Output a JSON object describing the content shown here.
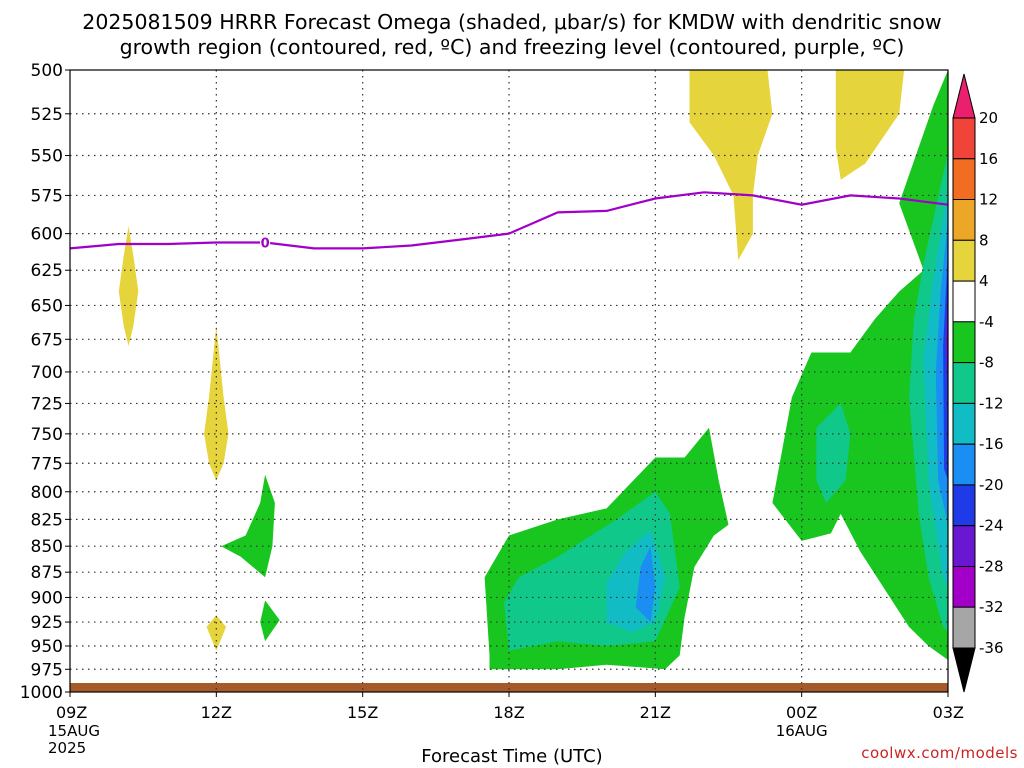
{
  "title_line1": "2025081509 HRRR Forecast Omega (shaded, μbar/s) for KMDW with dendritic snow",
  "title_line2": "growth region (contoured, red, ºC) and freezing level (contoured, purple, ºC)",
  "credit": "coolwx.com/models",
  "credit_color": "#cc2222",
  "chart_data": {
    "type": "heatmap",
    "title": "2025081509 HRRR Forecast Omega (shaded, μbar/s) for KMDW with dendritic snow growth region (contoured, red, ºC) and freezing level (contoured, purple, ºC)",
    "xlabel": "Forecast Time (UTC)",
    "ylabel": "",
    "x_range_hours": [
      0,
      18
    ],
    "y_range_hpa": [
      500,
      1000
    ],
    "y_scale": "log-pressure (inverted)",
    "grid": true,
    "x_ticks": [
      {
        "h": 0,
        "label": "09Z",
        "sub": [
          "15AUG",
          "2025"
        ]
      },
      {
        "h": 3,
        "label": "12Z",
        "sub": []
      },
      {
        "h": 6,
        "label": "15Z",
        "sub": []
      },
      {
        "h": 9,
        "label": "18Z",
        "sub": []
      },
      {
        "h": 12,
        "label": "21Z",
        "sub": []
      },
      {
        "h": 15,
        "label": "00Z",
        "sub": [
          "16AUG"
        ]
      },
      {
        "h": 18,
        "label": "03Z",
        "sub": []
      }
    ],
    "y_ticks": [
      500,
      525,
      550,
      575,
      600,
      625,
      650,
      675,
      700,
      725,
      750,
      775,
      800,
      825,
      850,
      875,
      900,
      925,
      950,
      975,
      1000
    ],
    "colorbar": {
      "labels": [
        "20",
        "16",
        "12",
        "8",
        "4",
        "-4",
        "-8",
        "-12",
        "-16",
        "-20",
        "-24",
        "-28",
        "-32",
        "-36"
      ],
      "colors_top_to_bottom": [
        "#ea1f6d",
        "#f0443a",
        "#f26d21",
        "#eca728",
        "#e6d43d",
        "#ffffff",
        "#19c61f",
        "#0fc88a",
        "#12bcc4",
        "#1a8ef2",
        "#1f3be8",
        "#6a17d2",
        "#a200c8",
        "#a6a6a6",
        "#000000"
      ]
    },
    "freezing_level": {
      "label": "0",
      "color": "#a000c8",
      "points": [
        [
          0,
          610
        ],
        [
          1,
          607
        ],
        [
          2,
          607
        ],
        [
          3,
          606
        ],
        [
          4,
          606
        ],
        [
          5,
          610
        ],
        [
          6,
          610
        ],
        [
          7,
          608
        ],
        [
          8,
          604
        ],
        [
          9,
          600
        ],
        [
          10,
          586
        ],
        [
          11,
          585
        ],
        [
          12,
          577
        ],
        [
          13,
          573
        ],
        [
          14,
          575
        ],
        [
          15,
          581
        ],
        [
          16,
          575
        ],
        [
          17,
          577
        ],
        [
          18,
          581
        ]
      ]
    },
    "omega_regions": [
      {
        "level": "4 to 8 (yellow)",
        "color": "#e6d43d",
        "shape": [
          [
            1.2,
            595
          ],
          [
            1.3,
            615
          ],
          [
            1.4,
            640
          ],
          [
            1.3,
            665
          ],
          [
            1.2,
            680
          ],
          [
            1.1,
            665
          ],
          [
            1.0,
            640
          ],
          [
            1.1,
            615
          ]
        ]
      },
      {
        "level": "4 to 8 (yellow)",
        "color": "#e6d43d",
        "shape": [
          [
            3.0,
            665
          ],
          [
            3.15,
            720
          ],
          [
            3.25,
            750
          ],
          [
            3.15,
            775
          ],
          [
            3.0,
            790
          ],
          [
            2.85,
            775
          ],
          [
            2.75,
            750
          ],
          [
            2.85,
            720
          ]
        ]
      },
      {
        "level": "4 to 8 (yellow)",
        "color": "#e6d43d",
        "shape": [
          [
            3.0,
            918
          ],
          [
            3.2,
            930
          ],
          [
            3.0,
            955
          ],
          [
            2.8,
            930
          ]
        ]
      },
      {
        "level": "4 to 8 (yellow)",
        "color": "#e6d43d",
        "shape": [
          [
            13.6,
            500
          ],
          [
            14.3,
            500
          ],
          [
            14.4,
            525
          ],
          [
            14.1,
            550
          ],
          [
            14.0,
            575
          ],
          [
            14.0,
            600
          ],
          [
            13.7,
            618
          ],
          [
            13.6,
            575
          ],
          [
            13.2,
            550
          ],
          [
            12.7,
            530
          ],
          [
            12.7,
            500
          ]
        ]
      },
      {
        "level": "4 to 8 (yellow)",
        "color": "#e6d43d",
        "shape": [
          [
            15.7,
            500
          ],
          [
            17.1,
            500
          ],
          [
            17.0,
            525
          ],
          [
            16.3,
            555
          ],
          [
            15.8,
            565
          ],
          [
            15.7,
            545
          ]
        ]
      },
      {
        "level": "-4 to -8 (green)",
        "color": "#19c61f",
        "shape": [
          [
            4.0,
            785
          ],
          [
            4.2,
            810
          ],
          [
            4.15,
            850
          ],
          [
            4.0,
            880
          ],
          [
            3.5,
            860
          ],
          [
            3.1,
            850
          ],
          [
            3.6,
            840
          ],
          [
            3.9,
            810
          ]
        ]
      },
      {
        "level": "-4 to -8 (green)",
        "color": "#19c61f",
        "shape": [
          [
            4.0,
            903
          ],
          [
            4.3,
            923
          ],
          [
            4.0,
            945
          ],
          [
            3.9,
            925
          ]
        ]
      },
      {
        "level": "-4 to -8 (green)",
        "color": "#19c61f",
        "shape": [
          [
            8.6,
            975
          ],
          [
            10,
            975
          ],
          [
            11,
            970
          ],
          [
            12.2,
            975
          ],
          [
            12.5,
            960
          ],
          [
            12.6,
            920
          ],
          [
            12.8,
            870
          ],
          [
            13.2,
            840
          ],
          [
            13.5,
            830
          ],
          [
            13.3,
            790
          ],
          [
            13.1,
            745
          ],
          [
            12.6,
            770
          ],
          [
            12,
            770
          ],
          [
            11,
            815
          ],
          [
            10,
            825
          ],
          [
            9,
            840
          ],
          [
            8.5,
            880
          ],
          [
            8.6,
            960
          ]
        ]
      },
      {
        "level": "-4 to -8 (green)",
        "color": "#19c61f",
        "shape": [
          [
            18,
            500
          ],
          [
            17.7,
            520
          ],
          [
            17.0,
            580
          ],
          [
            17.5,
            625
          ],
          [
            17.0,
            640
          ],
          [
            16.5,
            660
          ],
          [
            16.0,
            685
          ],
          [
            15.2,
            685
          ],
          [
            14.8,
            720
          ],
          [
            14.4,
            810
          ],
          [
            15.0,
            845
          ],
          [
            15.6,
            838
          ],
          [
            15.8,
            820
          ],
          [
            16.2,
            855
          ],
          [
            17.2,
            930
          ],
          [
            17.6,
            950
          ],
          [
            18,
            965
          ]
        ]
      },
      {
        "level": "-8 to -12 (teal)",
        "color": "#0fc88a",
        "shape": [
          [
            9.0,
            955
          ],
          [
            10,
            945
          ],
          [
            11,
            950
          ],
          [
            12,
            945
          ],
          [
            12.5,
            890
          ],
          [
            12.3,
            820
          ],
          [
            12.0,
            800
          ],
          [
            11.2,
            825
          ],
          [
            10,
            860
          ],
          [
            9.2,
            880
          ],
          [
            8.9,
            905
          ]
        ]
      },
      {
        "level": "-8 to -12 (teal)",
        "color": "#0fc88a",
        "shape": [
          [
            15.8,
            725
          ],
          [
            15.3,
            745
          ],
          [
            15.3,
            790
          ],
          [
            15.5,
            810
          ],
          [
            15.9,
            790
          ],
          [
            16.0,
            750
          ]
        ]
      },
      {
        "level": "-8 to -12 (teal)",
        "color": "#0fc88a",
        "shape": [
          [
            18,
            548
          ],
          [
            17.5,
            620
          ],
          [
            17.3,
            660
          ],
          [
            17.2,
            720
          ],
          [
            17.4,
            820
          ],
          [
            17.6,
            880
          ],
          [
            17.9,
            930
          ],
          [
            18,
            935
          ]
        ]
      },
      {
        "level": "-12 to -16 (cyan)",
        "color": "#12bcc4",
        "shape": [
          [
            11.0,
            925
          ],
          [
            11.5,
            935
          ],
          [
            12.0,
            925
          ],
          [
            12.2,
            880
          ],
          [
            11.9,
            835
          ],
          [
            11.4,
            855
          ],
          [
            11.0,
            885
          ]
        ]
      },
      {
        "level": "-12 to -16 (cyan)",
        "color": "#12bcc4",
        "shape": [
          [
            18,
            570
          ],
          [
            17.7,
            630
          ],
          [
            17.5,
            690
          ],
          [
            17.6,
            790
          ],
          [
            17.9,
            880
          ],
          [
            18,
            890
          ]
        ]
      },
      {
        "level": "-16 to -20 (blue)",
        "color": "#1a8ef2",
        "shape": [
          [
            11.6,
            910
          ],
          [
            11.9,
            925
          ],
          [
            12.0,
            890
          ],
          [
            11.9,
            850
          ],
          [
            11.7,
            870
          ]
        ]
      },
      {
        "level": "-16 to -20 (blue)",
        "color": "#1a8ef2",
        "shape": [
          [
            18,
            590
          ],
          [
            17.85,
            640
          ],
          [
            17.75,
            700
          ],
          [
            17.8,
            790
          ],
          [
            18,
            830
          ]
        ]
      },
      {
        "level": "-20 to -24 (dark blue)",
        "color": "#1f3be8",
        "shape": [
          [
            18,
            610
          ],
          [
            17.9,
            680
          ],
          [
            17.92,
            780
          ],
          [
            18,
            790
          ]
        ]
      },
      {
        "level": "-24 to -28 (purple)",
        "color": "#6a17d2",
        "shape": [
          [
            18,
            630
          ],
          [
            17.95,
            680
          ],
          [
            18,
            720
          ]
        ]
      }
    ],
    "ground": {
      "color": "#a65a2a",
      "pressure_hpa": 990
    }
  }
}
